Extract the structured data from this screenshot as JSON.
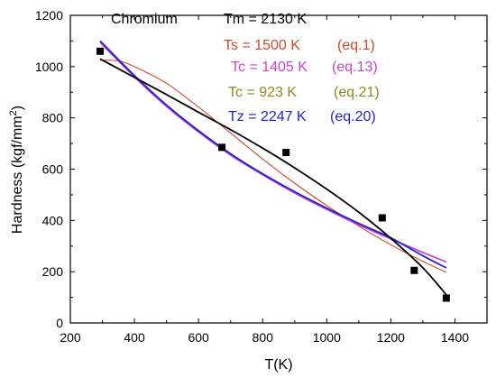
{
  "chart_data": {
    "type": "scatter",
    "xlabel": "T(K)",
    "ylabel_main": "Hardness (kgf/mm",
    "ylabel_sup": "2",
    "ylabel_close": ")",
    "xlim": [
      200,
      1500
    ],
    "ylim": [
      0,
      1200
    ],
    "xticks": [
      200,
      400,
      600,
      800,
      1000,
      1200,
      1400
    ],
    "yticks": [
      0,
      200,
      400,
      600,
      800,
      1000,
      1200
    ],
    "grid": false,
    "points": {
      "x": [
        293,
        673,
        873,
        1173,
        1273,
        1373
      ],
      "y": [
        1060,
        685,
        665,
        410,
        205,
        97
      ]
    },
    "series": [
      {
        "label": "Tm = 2130 K",
        "equation": "",
        "color": "#000000",
        "x": [
          293,
          400,
          500,
          600,
          700,
          800,
          900,
          1000,
          1100,
          1200,
          1300,
          1373
        ],
        "y": [
          1030,
          958,
          891,
          822,
          754,
          682,
          605,
          522,
          432,
          330,
          215,
          110
        ]
      },
      {
        "label": "Ts = 1500 K",
        "equation": "(eq.1)",
        "color": "#cc4a2a",
        "x": [
          293,
          350,
          400,
          500,
          600,
          700,
          800,
          900,
          1000,
          1100,
          1200,
          1300,
          1373
        ],
        "y": [
          1025,
          1022,
          1000,
          935,
          842,
          741,
          640,
          545,
          458,
          378,
          305,
          240,
          198
        ]
      },
      {
        "label": "Tc = 1405 K",
        "equation": "(eq.13)",
        "color": "#cc44cc",
        "x": [
          293,
          400,
          500,
          600,
          700,
          800,
          900,
          1000,
          1100,
          1200,
          1300,
          1373
        ],
        "y": [
          1095,
          960,
          845,
          745,
          655,
          578,
          507,
          443,
          383,
          328,
          275,
          238
        ]
      },
      {
        "label": "Tc = 923 K",
        "equation": "(eq.21)",
        "color": "#8c8a1a",
        "x": [],
        "y": []
      },
      {
        "label": "Tz = 2247 K",
        "equation": "(eq.20)",
        "color": "#2222cc",
        "x": [
          293,
          400,
          500,
          600,
          700,
          800,
          900,
          1000,
          1100,
          1200,
          1300,
          1373
        ],
        "y": [
          1100,
          965,
          850,
          750,
          660,
          582,
          512,
          448,
          388,
          332,
          262,
          215
        ]
      }
    ],
    "annotation_title": "Chromium"
  }
}
